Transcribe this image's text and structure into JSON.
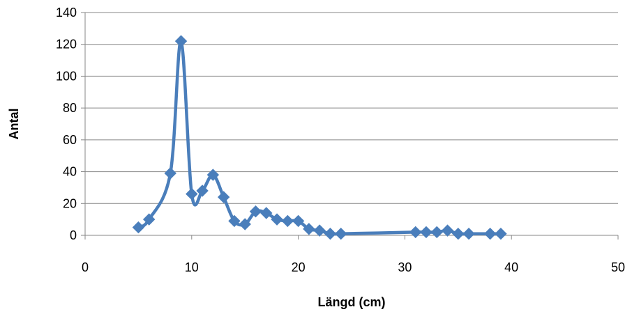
{
  "chart_data": {
    "type": "scatter",
    "title": "",
    "xlabel": "Längd (cm)",
    "ylabel": "Antal",
    "xlim": [
      0,
      50
    ],
    "ylim": [
      0,
      140
    ],
    "xticks": [
      0,
      10,
      20,
      30,
      40,
      50
    ],
    "yticks": [
      0,
      20,
      40,
      60,
      80,
      100,
      120,
      140
    ],
    "grid": "horizontal",
    "line_style": "smooth with diamond markers",
    "series": [
      {
        "color": "#4a7ebb",
        "points": [
          [
            5,
            5
          ],
          [
            6,
            10
          ],
          [
            8,
            39
          ],
          [
            9,
            122
          ],
          [
            10,
            26
          ],
          [
            11,
            28
          ],
          [
            12,
            38
          ],
          [
            13,
            24
          ],
          [
            14,
            9
          ],
          [
            15,
            7
          ],
          [
            16,
            15
          ],
          [
            17,
            14
          ],
          [
            18,
            10
          ],
          [
            19,
            9
          ],
          [
            20,
            9
          ],
          [
            21,
            4
          ],
          [
            22,
            3
          ],
          [
            23,
            1
          ],
          [
            24,
            1
          ],
          [
            31,
            2
          ],
          [
            32,
            2
          ],
          [
            33,
            2
          ],
          [
            34,
            3
          ],
          [
            35,
            1
          ],
          [
            36,
            1
          ],
          [
            38,
            1
          ],
          [
            39,
            1
          ]
        ]
      }
    ]
  }
}
